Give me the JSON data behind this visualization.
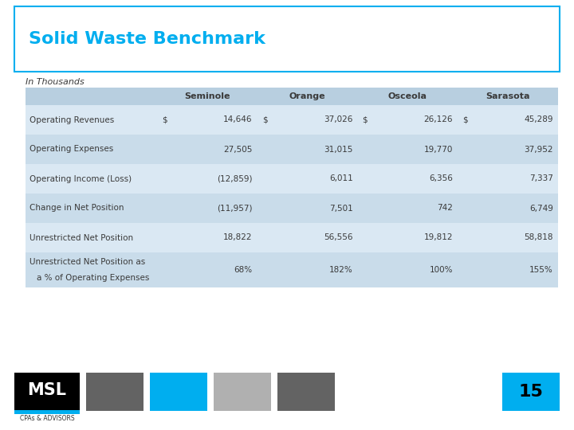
{
  "title": "Solid Waste Benchmark",
  "subtitle": "In Thousands",
  "columns": [
    "",
    "Seminole",
    "Orange",
    "Osceola",
    "Sarasota"
  ],
  "rows": [
    [
      "Operating Revenues",
      "$",
      "14,646",
      "$",
      "37,026",
      "$",
      "26,126",
      "$",
      "45,289"
    ],
    [
      "Operating Expenses",
      "",
      "27,505",
      "",
      "31,015",
      "",
      "19,770",
      "",
      "37,952"
    ],
    [
      "Operating Income (Loss)",
      "",
      "(12,859)",
      "",
      "6,011",
      "",
      "6,356",
      "",
      "7,337"
    ],
    [
      "Change in Net Position",
      "",
      "(11,957)",
      "",
      "7,501",
      "",
      "742",
      "",
      "6,749"
    ],
    [
      "Unrestricted Net Position",
      "",
      "18,822",
      "",
      "56,556",
      "",
      "19,812",
      "",
      "58,818"
    ],
    [
      "Unrestricted Net Position as\na % of Operating Expenses",
      "",
      "68%",
      "",
      "182%",
      "",
      "100%",
      "",
      "155%"
    ]
  ],
  "header_bg": "#b8cfe0",
  "row_bg_even": "#dae8f3",
  "row_bg_odd": "#c9dcea",
  "title_color": "#00aeef",
  "title_border_color": "#00aeef",
  "background": "#ffffff",
  "text_color": "#3a3a3a",
  "page_number": "15",
  "page_number_bg": "#00aeef",
  "page_number_color": "#000000",
  "logo_bg": "#000000",
  "logo_text_color": "#ffffff",
  "logo_underline_color": "#00aeef",
  "logo_sub": "CPAs & ADVISORS",
  "sq_colors": [
    "#636363",
    "#00aeef",
    "#b0b0b0",
    "#636363"
  ]
}
